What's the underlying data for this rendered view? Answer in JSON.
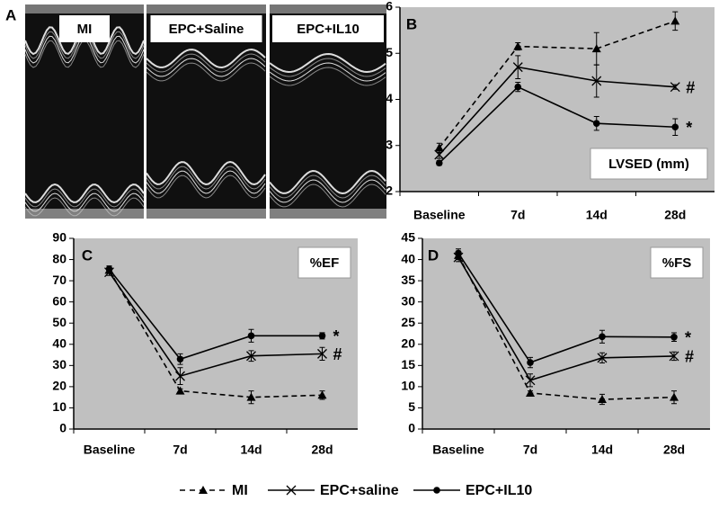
{
  "panel_a": {
    "letter": "A",
    "labels": [
      "MI",
      "EPC+Saline",
      "EPC+IL10"
    ]
  },
  "chart_data": [
    {
      "type": "line",
      "panel": "B",
      "label": "LVSED (mm)",
      "categories": [
        "Baseline",
        "7d",
        "14d",
        "28d"
      ],
      "ylim": [
        2,
        6
      ],
      "yticks": [
        2,
        3,
        4,
        5,
        6
      ],
      "series": [
        {
          "name": "MI",
          "color": "#000000",
          "line_style": "dashed",
          "marker": "triangle",
          "values": [
            2.95,
            5.15,
            5.1,
            5.7
          ],
          "errors": [
            0.1,
            0.08,
            0.35,
            0.2
          ]
        },
        {
          "name": "EPC+saline",
          "color": "#000000",
          "line_style": "solid",
          "marker": "x",
          "annotation": "#",
          "values": [
            2.8,
            4.7,
            4.4,
            4.27
          ],
          "errors": [
            0.08,
            0.25,
            0.35,
            0.05
          ]
        },
        {
          "name": "EPC+IL10",
          "color": "#000000",
          "line_style": "solid",
          "marker": "circle",
          "annotation": "*",
          "values": [
            2.62,
            4.27,
            3.48,
            3.4
          ],
          "errors": [
            0.05,
            0.1,
            0.15,
            0.18
          ]
        }
      ]
    },
    {
      "type": "line",
      "panel": "C",
      "label": "%EF",
      "categories": [
        "Baseline",
        "7d",
        "14d",
        "28d"
      ],
      "ylim": [
        0,
        90
      ],
      "yticks": [
        0,
        10,
        20,
        30,
        40,
        50,
        60,
        70,
        80,
        90
      ],
      "series": [
        {
          "name": "MI",
          "color": "#000000",
          "line_style": "dashed",
          "marker": "triangle",
          "values": [
            75,
            18,
            15,
            16
          ],
          "errors": [
            1.5,
            1,
            3,
            2
          ]
        },
        {
          "name": "EPC+saline",
          "color": "#000000",
          "line_style": "solid",
          "marker": "x",
          "annotation": "#",
          "values": [
            74,
            25,
            34.5,
            35.5
          ],
          "errors": [
            1.5,
            4,
            2.5,
            3
          ]
        },
        {
          "name": "EPC+IL10",
          "color": "#000000",
          "line_style": "solid",
          "marker": "circle",
          "annotation": "*",
          "values": [
            75.5,
            33,
            44,
            44
          ],
          "errors": [
            1.5,
            2.5,
            3,
            1.5
          ]
        }
      ]
    },
    {
      "type": "line",
      "panel": "D",
      "label": "%FS",
      "categories": [
        "Baseline",
        "7d",
        "14d",
        "28d"
      ],
      "ylim": [
        0,
        45
      ],
      "yticks": [
        0,
        5,
        10,
        15,
        20,
        25,
        30,
        35,
        40,
        45
      ],
      "series": [
        {
          "name": "MI",
          "color": "#000000",
          "line_style": "dashed",
          "marker": "triangle",
          "values": [
            41,
            8.5,
            7,
            7.5
          ],
          "errors": [
            1,
            0.5,
            1.2,
            1.5
          ]
        },
        {
          "name": "EPC+saline",
          "color": "#000000",
          "line_style": "solid",
          "marker": "x",
          "annotation": "#",
          "values": [
            40.5,
            11.5,
            16.8,
            17.2
          ],
          "errors": [
            1,
            1.5,
            1.2,
            1
          ]
        },
        {
          "name": "EPC+IL10",
          "color": "#000000",
          "line_style": "solid",
          "marker": "circle",
          "annotation": "*",
          "values": [
            41.5,
            15.7,
            21.8,
            21.7
          ],
          "errors": [
            1,
            1.2,
            1.5,
            1
          ]
        }
      ]
    }
  ]
}
